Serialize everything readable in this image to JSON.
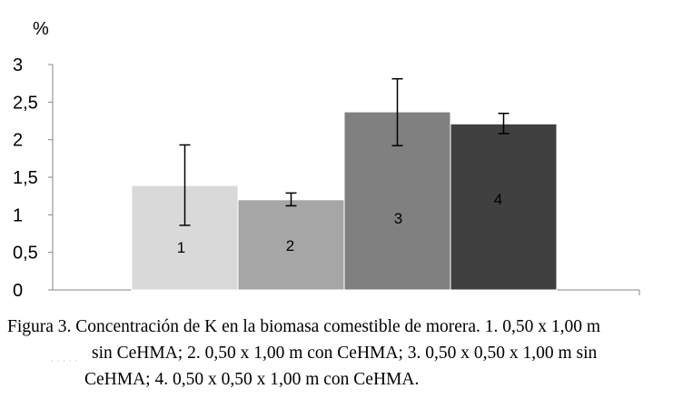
{
  "chart_data": {
    "type": "bar",
    "ylabel": "%",
    "ylim": [
      0,
      3
    ],
    "yticks": [
      "0",
      "0,5",
      "1",
      "1,5",
      "2",
      "2,5",
      "3"
    ],
    "grid": false,
    "legend": "none",
    "categories": [
      "1",
      "2",
      "3",
      "4"
    ],
    "values": [
      1.39,
      1.2,
      2.37,
      2.21
    ],
    "errors": [
      [
        0.86,
        1.93
      ],
      [
        1.12,
        1.29
      ],
      [
        1.92,
        2.81
      ],
      [
        2.08,
        2.35
      ]
    ],
    "bar_colors": [
      "#d9d9d9",
      "#a6a6a6",
      "#808080",
      "#404040"
    ],
    "label_colors": [
      "#000000",
      "#000000",
      "#000000",
      "#000000"
    ]
  },
  "caption": {
    "line1": "Figura 3. Concentración de K en la biomasa comestible de morera. 1. 0,50 x 1,00 m",
    "line2": "sin CeHMA; 2. 0,50 x 1,00 m con CeHMA;  3.  0,50 x 0,50 x 1,00 m sin",
    "line3": "CeHMA; 4. 0,50 x 0,50 x 1,00 m con CeHMA."
  }
}
